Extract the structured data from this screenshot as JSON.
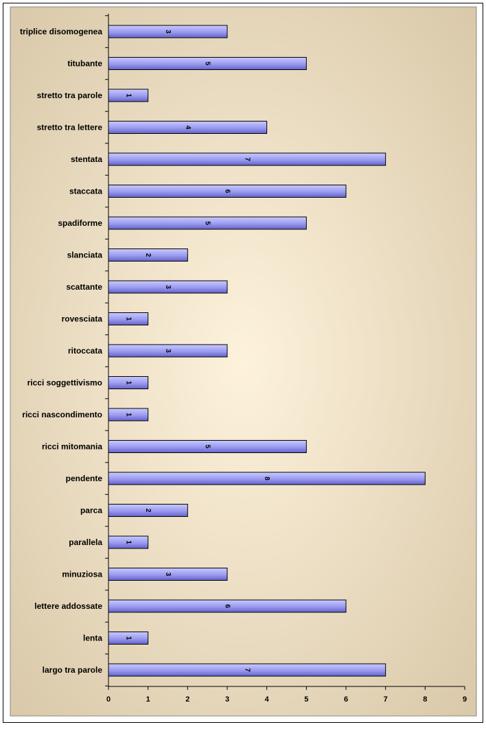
{
  "chart_data": {
    "type": "bar",
    "orientation": "horizontal",
    "categories": [
      "triplice disomogenea",
      "titubante",
      "stretto tra parole",
      "stretto tra lettere",
      "stentata",
      "staccata",
      "spadiforme",
      "slanciata",
      "scattante",
      "rovesciata",
      "ritoccata",
      "ricci soggettivismo",
      "ricci nascondimento",
      "ricci mitomania",
      "pendente",
      "parca",
      "parallela",
      "minuziosa",
      "lettere addossate",
      "lenta",
      "largo tra parole"
    ],
    "values": [
      3,
      5,
      1,
      4,
      7,
      6,
      5,
      2,
      3,
      1,
      3,
      1,
      1,
      5,
      8,
      2,
      1,
      3,
      6,
      1,
      7
    ],
    "data_labels": [
      "3",
      "5",
      "1",
      "4",
      "7",
      "6",
      "5",
      "2",
      "3",
      "1",
      "3",
      "1",
      "1",
      "5",
      "8",
      "2",
      "1",
      "3",
      "6",
      "1",
      "7"
    ],
    "xlim": [
      0,
      9
    ],
    "x_ticks": [
      "0",
      "1",
      "2",
      "3",
      "4",
      "5",
      "6",
      "7",
      "8",
      "9"
    ],
    "grid": false,
    "legend": "none",
    "colors": {
      "bar_light": "#c9c9ff",
      "bar_mid": "#9a9af0",
      "bar_dark": "#6262c8",
      "bar_stroke": "#000000",
      "background_center": "#fdf2dc",
      "background_edge": "#d7c6a6",
      "frame": "#000000"
    }
  }
}
